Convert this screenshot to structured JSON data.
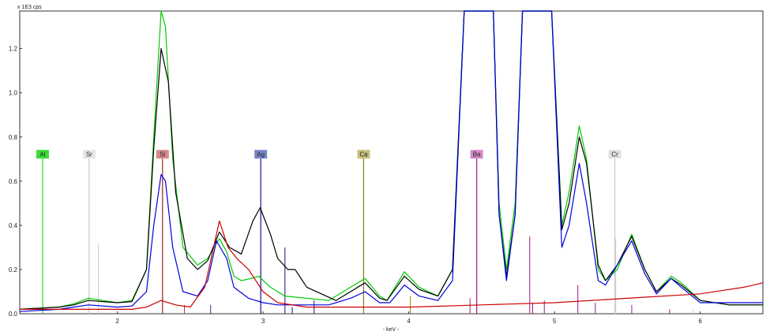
{
  "chart_data": {
    "type": "line",
    "title": "",
    "ylabel_unit": "x 1E3 cps",
    "xlabel": "- keV -",
    "xlim": [
      1.33,
      6.43
    ],
    "ylim": [
      0,
      1.37
    ],
    "x_ticks": [
      {
        "value": 2,
        "label": "2"
      },
      {
        "value": 3,
        "label": "3"
      },
      {
        "value": 4,
        "label": "4"
      },
      {
        "value": 5,
        "label": "5"
      },
      {
        "value": 6,
        "label": "6"
      }
    ],
    "y_ticks": [
      {
        "value": 0.0,
        "label": "0.0"
      },
      {
        "value": 0.2,
        "label": "0.2"
      },
      {
        "value": 0.4,
        "label": "0.4"
      },
      {
        "value": 0.6,
        "label": "0.6"
      },
      {
        "value": 0.8,
        "label": "0.8"
      },
      {
        "value": 1.0,
        "label": "1.0"
      },
      {
        "value": 1.2,
        "label": "1.2"
      }
    ],
    "grid": false,
    "legend": "none",
    "series": [
      {
        "color": "#00cc00",
        "points": [
          [
            1.33,
            0.02
          ],
          [
            1.6,
            0.03
          ],
          [
            1.7,
            0.045
          ],
          [
            1.8,
            0.07
          ],
          [
            1.9,
            0.06
          ],
          [
            2.0,
            0.05
          ],
          [
            2.1,
            0.06
          ],
          [
            2.2,
            0.2
          ],
          [
            2.25,
            0.8
          ],
          [
            2.3,
            1.37
          ],
          [
            2.33,
            1.3
          ],
          [
            2.38,
            0.7
          ],
          [
            2.45,
            0.3
          ],
          [
            2.55,
            0.22
          ],
          [
            2.62,
            0.25
          ],
          [
            2.7,
            0.34
          ],
          [
            2.75,
            0.28
          ],
          [
            2.8,
            0.17
          ],
          [
            2.85,
            0.15
          ],
          [
            2.92,
            0.16
          ],
          [
            2.97,
            0.17
          ],
          [
            3.05,
            0.12
          ],
          [
            3.15,
            0.08
          ],
          [
            3.3,
            0.07
          ],
          [
            3.45,
            0.06
          ],
          [
            3.6,
            0.12
          ],
          [
            3.7,
            0.16
          ],
          [
            3.8,
            0.08
          ],
          [
            3.85,
            0.06
          ],
          [
            3.97,
            0.19
          ],
          [
            4.07,
            0.12
          ],
          [
            4.2,
            0.08
          ],
          [
            4.3,
            0.2
          ],
          [
            4.38,
            1.37
          ],
          [
            4.58,
            1.37
          ],
          [
            4.62,
            0.5
          ],
          [
            4.67,
            0.2
          ],
          [
            4.73,
            0.5
          ],
          [
            4.78,
            1.37
          ],
          [
            4.98,
            1.37
          ],
          [
            5.05,
            0.4
          ],
          [
            5.1,
            0.55
          ],
          [
            5.17,
            0.85
          ],
          [
            5.22,
            0.7
          ],
          [
            5.3,
            0.2
          ],
          [
            5.35,
            0.15
          ],
          [
            5.43,
            0.2
          ],
          [
            5.53,
            0.36
          ],
          [
            5.62,
            0.2
          ],
          [
            5.7,
            0.1
          ],
          [
            5.8,
            0.17
          ],
          [
            5.87,
            0.14
          ],
          [
            6.0,
            0.06
          ],
          [
            6.2,
            0.04
          ],
          [
            6.43,
            0.04
          ]
        ]
      },
      {
        "color": "#000000",
        "points": [
          [
            1.33,
            0.02
          ],
          [
            1.6,
            0.03
          ],
          [
            1.7,
            0.04
          ],
          [
            1.8,
            0.06
          ],
          [
            1.9,
            0.055
          ],
          [
            2.0,
            0.05
          ],
          [
            2.1,
            0.055
          ],
          [
            2.2,
            0.2
          ],
          [
            2.25,
            0.75
          ],
          [
            2.3,
            1.2
          ],
          [
            2.35,
            1.05
          ],
          [
            2.4,
            0.55
          ],
          [
            2.48,
            0.25
          ],
          [
            2.55,
            0.2
          ],
          [
            2.62,
            0.24
          ],
          [
            2.7,
            0.37
          ],
          [
            2.77,
            0.3
          ],
          [
            2.85,
            0.27
          ],
          [
            2.93,
            0.42
          ],
          [
            2.98,
            0.48
          ],
          [
            3.05,
            0.36
          ],
          [
            3.1,
            0.25
          ],
          [
            3.17,
            0.2
          ],
          [
            3.22,
            0.2
          ],
          [
            3.3,
            0.12
          ],
          [
            3.4,
            0.09
          ],
          [
            3.5,
            0.06
          ],
          [
            3.6,
            0.1
          ],
          [
            3.7,
            0.14
          ],
          [
            3.8,
            0.07
          ],
          [
            3.85,
            0.06
          ],
          [
            3.97,
            0.17
          ],
          [
            4.07,
            0.11
          ],
          [
            4.2,
            0.08
          ],
          [
            4.3,
            0.2
          ],
          [
            4.38,
            1.37
          ],
          [
            4.58,
            1.37
          ],
          [
            4.62,
            0.45
          ],
          [
            4.67,
            0.17
          ],
          [
            4.73,
            0.45
          ],
          [
            4.78,
            1.37
          ],
          [
            4.98,
            1.37
          ],
          [
            5.05,
            0.38
          ],
          [
            5.1,
            0.5
          ],
          [
            5.17,
            0.8
          ],
          [
            5.22,
            0.68
          ],
          [
            5.3,
            0.22
          ],
          [
            5.35,
            0.15
          ],
          [
            5.43,
            0.22
          ],
          [
            5.53,
            0.35
          ],
          [
            5.62,
            0.2
          ],
          [
            5.7,
            0.1
          ],
          [
            5.8,
            0.16
          ],
          [
            5.87,
            0.13
          ],
          [
            6.0,
            0.06
          ],
          [
            6.2,
            0.04
          ],
          [
            6.43,
            0.04
          ]
        ]
      },
      {
        "color": "#0000dd",
        "points": [
          [
            1.33,
            0.01
          ],
          [
            1.6,
            0.02
          ],
          [
            1.7,
            0.03
          ],
          [
            1.8,
            0.04
          ],
          [
            1.9,
            0.035
          ],
          [
            2.0,
            0.03
          ],
          [
            2.1,
            0.035
          ],
          [
            2.2,
            0.1
          ],
          [
            2.25,
            0.4
          ],
          [
            2.3,
            0.63
          ],
          [
            2.33,
            0.6
          ],
          [
            2.38,
            0.3
          ],
          [
            2.45,
            0.1
          ],
          [
            2.55,
            0.08
          ],
          [
            2.62,
            0.15
          ],
          [
            2.68,
            0.33
          ],
          [
            2.75,
            0.25
          ],
          [
            2.8,
            0.12
          ],
          [
            2.9,
            0.07
          ],
          [
            3.0,
            0.05
          ],
          [
            3.1,
            0.04
          ],
          [
            3.3,
            0.04
          ],
          [
            3.45,
            0.04
          ],
          [
            3.6,
            0.07
          ],
          [
            3.7,
            0.1
          ],
          [
            3.8,
            0.05
          ],
          [
            3.87,
            0.05
          ],
          [
            3.97,
            0.13
          ],
          [
            4.07,
            0.08
          ],
          [
            4.2,
            0.06
          ],
          [
            4.3,
            0.15
          ],
          [
            4.38,
            1.37
          ],
          [
            4.58,
            1.37
          ],
          [
            4.62,
            0.45
          ],
          [
            4.67,
            0.15
          ],
          [
            4.73,
            0.45
          ],
          [
            4.78,
            1.37
          ],
          [
            4.98,
            1.37
          ],
          [
            5.05,
            0.3
          ],
          [
            5.1,
            0.4
          ],
          [
            5.17,
            0.68
          ],
          [
            5.22,
            0.5
          ],
          [
            5.3,
            0.15
          ],
          [
            5.35,
            0.13
          ],
          [
            5.43,
            0.22
          ],
          [
            5.53,
            0.33
          ],
          [
            5.62,
            0.18
          ],
          [
            5.7,
            0.09
          ],
          [
            5.8,
            0.16
          ],
          [
            5.87,
            0.12
          ],
          [
            6.0,
            0.05
          ],
          [
            6.2,
            0.05
          ],
          [
            6.43,
            0.05
          ]
        ]
      },
      {
        "color": "#cc0000",
        "points": [
          [
            1.33,
            0.02
          ],
          [
            1.5,
            0.02
          ],
          [
            1.8,
            0.02
          ],
          [
            2.1,
            0.02
          ],
          [
            2.2,
            0.03
          ],
          [
            2.3,
            0.06
          ],
          [
            2.4,
            0.04
          ],
          [
            2.5,
            0.03
          ],
          [
            2.6,
            0.12
          ],
          [
            2.7,
            0.42
          ],
          [
            2.76,
            0.3
          ],
          [
            2.82,
            0.25
          ],
          [
            2.9,
            0.2
          ],
          [
            3.0,
            0.1
          ],
          [
            3.1,
            0.05
          ],
          [
            3.3,
            0.03
          ],
          [
            3.6,
            0.03
          ],
          [
            4.0,
            0.03
          ],
          [
            4.5,
            0.04
          ],
          [
            5.0,
            0.05
          ],
          [
            5.5,
            0.07
          ],
          [
            6.0,
            0.09
          ],
          [
            6.3,
            0.12
          ],
          [
            6.43,
            0.14
          ]
        ]
      }
    ],
    "element_markers": [
      {
        "symbol": "Al",
        "energy": 1.487,
        "color": "#22dd22",
        "label_bg": "#3cdc3c",
        "height": 0.72
      },
      {
        "symbol": "Sr",
        "energy": 1.806,
        "color": "#c8c8c8",
        "label_bg": "#e6e6e6",
        "height": 0.72
      },
      {
        "symbol": "Si",
        "energy": 2.31,
        "color": "#a02020",
        "label_bg": "#d88a8a",
        "height": 0.72
      },
      {
        "symbol": "Ag",
        "energy": 2.984,
        "color": "#10108a",
        "label_bg": "#7a86c8",
        "height": 0.72
      },
      {
        "symbol": "Ca",
        "energy": 3.69,
        "color": "#8a7a10",
        "label_bg": "#c8bf80",
        "height": 0.72
      },
      {
        "symbol": "Ba",
        "energy": 4.466,
        "color": "#9a1a80",
        "label_bg": "#d48ac8",
        "height": 0.72
      },
      {
        "symbol": "Cr",
        "energy": 5.414,
        "color": "#c8c8c8",
        "label_bg": "#e0e0e0",
        "height": 0.72
      }
    ],
    "reference_lines": [
      {
        "energy": 1.87,
        "height": 0.32,
        "color": "#cccccc"
      },
      {
        "energy": 2.46,
        "height": 0.04,
        "color": "#cc3333"
      },
      {
        "energy": 2.64,
        "height": 0.04,
        "color": "#3333aa"
      },
      {
        "energy": 3.15,
        "height": 0.3,
        "color": "#10108a"
      },
      {
        "energy": 3.2,
        "height": 0.03,
        "color": "#10108a"
      },
      {
        "energy": 3.35,
        "height": 0.06,
        "color": "#10108a"
      },
      {
        "energy": 3.69,
        "height": 0.34,
        "color": "#a08a10"
      },
      {
        "energy": 4.01,
        "height": 0.08,
        "color": "#a08a10"
      },
      {
        "energy": 4.42,
        "height": 0.07,
        "color": "#9a1a80"
      },
      {
        "energy": 4.83,
        "height": 0.35,
        "color": "#9a1a80"
      },
      {
        "energy": 4.85,
        "height": 0.05,
        "color": "#9a1a80"
      },
      {
        "energy": 4.93,
        "height": 0.06,
        "color": "#9a1a80"
      },
      {
        "energy": 5.16,
        "height": 0.13,
        "color": "#9a1a80"
      },
      {
        "energy": 5.28,
        "height": 0.05,
        "color": "#9a1a80"
      },
      {
        "energy": 5.42,
        "height": 0.34,
        "color": "#cccccc"
      },
      {
        "energy": 5.53,
        "height": 0.04,
        "color": "#9a1a80"
      },
      {
        "energy": 5.79,
        "height": 0.02,
        "color": "#9a1a80"
      },
      {
        "energy": 5.95,
        "height": 0.02,
        "color": "#cccccc"
      }
    ]
  }
}
